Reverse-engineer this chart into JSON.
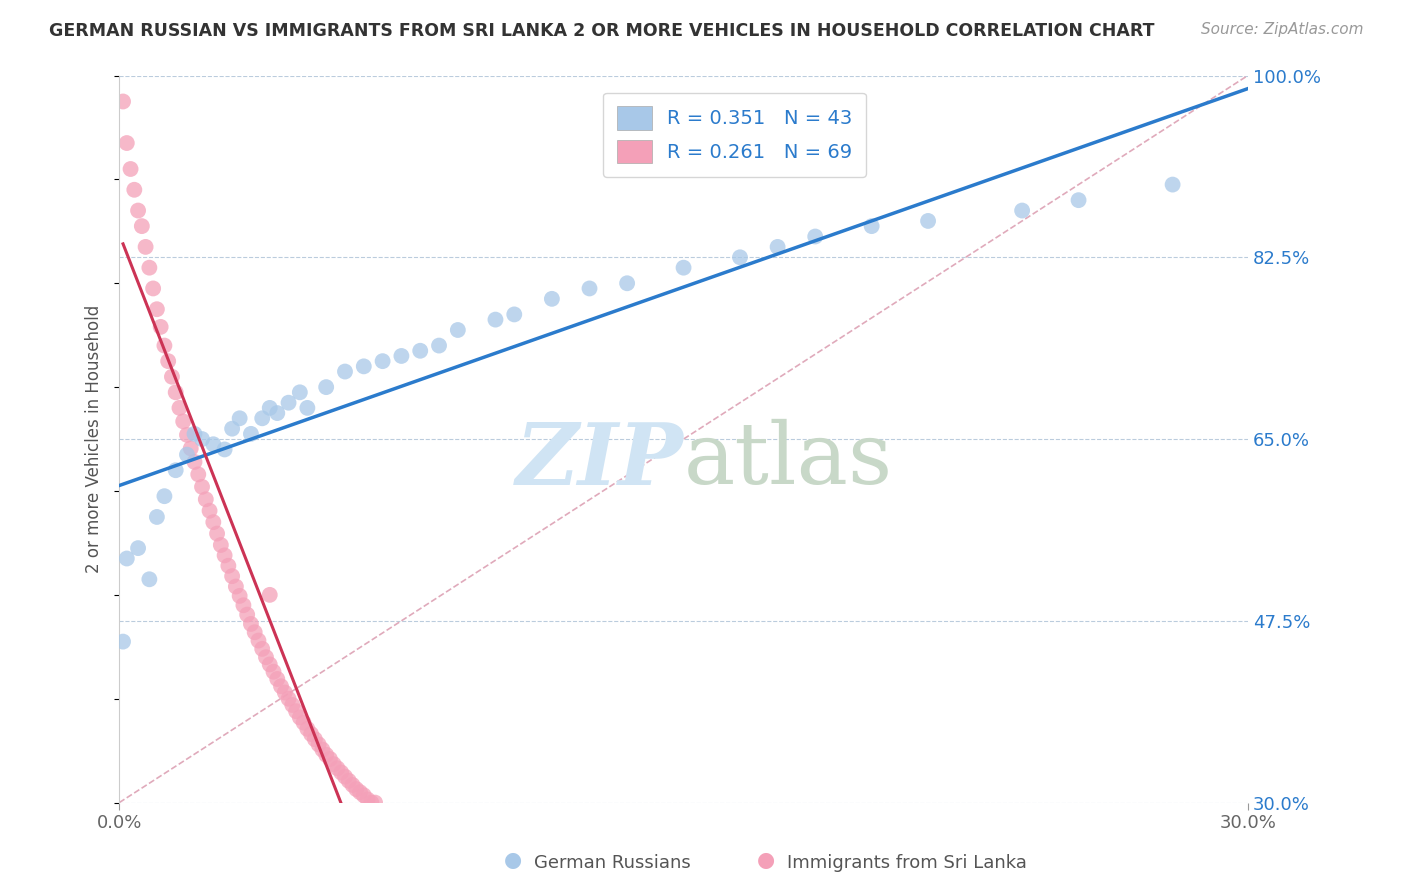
{
  "title": "GERMAN RUSSIAN VS IMMIGRANTS FROM SRI LANKA 2 OR MORE VEHICLES IN HOUSEHOLD CORRELATION CHART",
  "source": "Source: ZipAtlas.com",
  "ylabel": "2 or more Vehicles in Household",
  "xlim": [
    0.0,
    0.3
  ],
  "ylim": [
    0.3,
    1.0
  ],
  "yticks": [
    0.3,
    0.475,
    0.65,
    0.825,
    1.0
  ],
  "ytick_labels": [
    "30.0%",
    "47.5%",
    "65.0%",
    "82.5%",
    "100.0%"
  ],
  "blue_R": 0.351,
  "blue_N": 43,
  "pink_R": 0.261,
  "pink_N": 69,
  "blue_color": "#A8C8E8",
  "pink_color": "#F4A0B8",
  "blue_line_color": "#2B7BCC",
  "pink_line_color": "#CC3355",
  "regression_text_color": "#2B7BCC",
  "title_color": "#333333",
  "watermark_color": "#D0E4F4",
  "grid_color": "#BBCCDD",
  "diag_color": "#E0AABB",
  "blue_scatter": [
    [
      0.001,
      0.455
    ],
    [
      0.002,
      0.535
    ],
    [
      0.005,
      0.545
    ],
    [
      0.008,
      0.515
    ],
    [
      0.01,
      0.575
    ],
    [
      0.012,
      0.595
    ],
    [
      0.015,
      0.62
    ],
    [
      0.018,
      0.635
    ],
    [
      0.02,
      0.655
    ],
    [
      0.022,
      0.65
    ],
    [
      0.025,
      0.645
    ],
    [
      0.028,
      0.64
    ],
    [
      0.03,
      0.66
    ],
    [
      0.032,
      0.67
    ],
    [
      0.035,
      0.655
    ],
    [
      0.038,
      0.67
    ],
    [
      0.04,
      0.68
    ],
    [
      0.042,
      0.675
    ],
    [
      0.045,
      0.685
    ],
    [
      0.048,
      0.695
    ],
    [
      0.05,
      0.68
    ],
    [
      0.055,
      0.7
    ],
    [
      0.06,
      0.715
    ],
    [
      0.065,
      0.72
    ],
    [
      0.07,
      0.725
    ],
    [
      0.075,
      0.73
    ],
    [
      0.08,
      0.735
    ],
    [
      0.085,
      0.74
    ],
    [
      0.09,
      0.755
    ],
    [
      0.1,
      0.765
    ],
    [
      0.105,
      0.77
    ],
    [
      0.115,
      0.785
    ],
    [
      0.125,
      0.795
    ],
    [
      0.135,
      0.8
    ],
    [
      0.15,
      0.815
    ],
    [
      0.165,
      0.825
    ],
    [
      0.175,
      0.835
    ],
    [
      0.185,
      0.845
    ],
    [
      0.2,
      0.855
    ],
    [
      0.215,
      0.86
    ],
    [
      0.255,
      0.88
    ],
    [
      0.24,
      0.87
    ],
    [
      0.28,
      0.895
    ]
  ],
  "pink_scatter": [
    [
      0.001,
      0.975
    ],
    [
      0.002,
      0.935
    ],
    [
      0.003,
      0.91
    ],
    [
      0.004,
      0.89
    ],
    [
      0.005,
      0.87
    ],
    [
      0.006,
      0.855
    ],
    [
      0.007,
      0.835
    ],
    [
      0.008,
      0.815
    ],
    [
      0.009,
      0.795
    ],
    [
      0.01,
      0.775
    ],
    [
      0.011,
      0.758
    ],
    [
      0.012,
      0.74
    ],
    [
      0.013,
      0.725
    ],
    [
      0.014,
      0.71
    ],
    [
      0.015,
      0.695
    ],
    [
      0.016,
      0.68
    ],
    [
      0.017,
      0.667
    ],
    [
      0.018,
      0.654
    ],
    [
      0.019,
      0.641
    ],
    [
      0.02,
      0.628
    ],
    [
      0.021,
      0.616
    ],
    [
      0.022,
      0.604
    ],
    [
      0.023,
      0.592
    ],
    [
      0.024,
      0.581
    ],
    [
      0.025,
      0.57
    ],
    [
      0.026,
      0.559
    ],
    [
      0.027,
      0.548
    ],
    [
      0.028,
      0.538
    ],
    [
      0.029,
      0.528
    ],
    [
      0.03,
      0.518
    ],
    [
      0.031,
      0.508
    ],
    [
      0.032,
      0.499
    ],
    [
      0.033,
      0.49
    ],
    [
      0.034,
      0.481
    ],
    [
      0.035,
      0.472
    ],
    [
      0.036,
      0.464
    ],
    [
      0.037,
      0.456
    ],
    [
      0.038,
      0.448
    ],
    [
      0.039,
      0.44
    ],
    [
      0.04,
      0.433
    ],
    [
      0.041,
      0.426
    ],
    [
      0.042,
      0.419
    ],
    [
      0.043,
      0.412
    ],
    [
      0.044,
      0.406
    ],
    [
      0.045,
      0.4
    ],
    [
      0.046,
      0.394
    ],
    [
      0.047,
      0.388
    ],
    [
      0.048,
      0.382
    ],
    [
      0.049,
      0.377
    ],
    [
      0.05,
      0.371
    ],
    [
      0.051,
      0.366
    ],
    [
      0.052,
      0.361
    ],
    [
      0.053,
      0.356
    ],
    [
      0.054,
      0.351
    ],
    [
      0.055,
      0.346
    ],
    [
      0.056,
      0.342
    ],
    [
      0.057,
      0.337
    ],
    [
      0.058,
      0.333
    ],
    [
      0.059,
      0.329
    ],
    [
      0.06,
      0.325
    ],
    [
      0.061,
      0.321
    ],
    [
      0.062,
      0.317
    ],
    [
      0.063,
      0.313
    ],
    [
      0.064,
      0.31
    ],
    [
      0.065,
      0.307
    ],
    [
      0.066,
      0.303
    ],
    [
      0.067,
      0.3
    ],
    [
      0.068,
      0.3
    ],
    [
      0.04,
      0.5
    ]
  ]
}
